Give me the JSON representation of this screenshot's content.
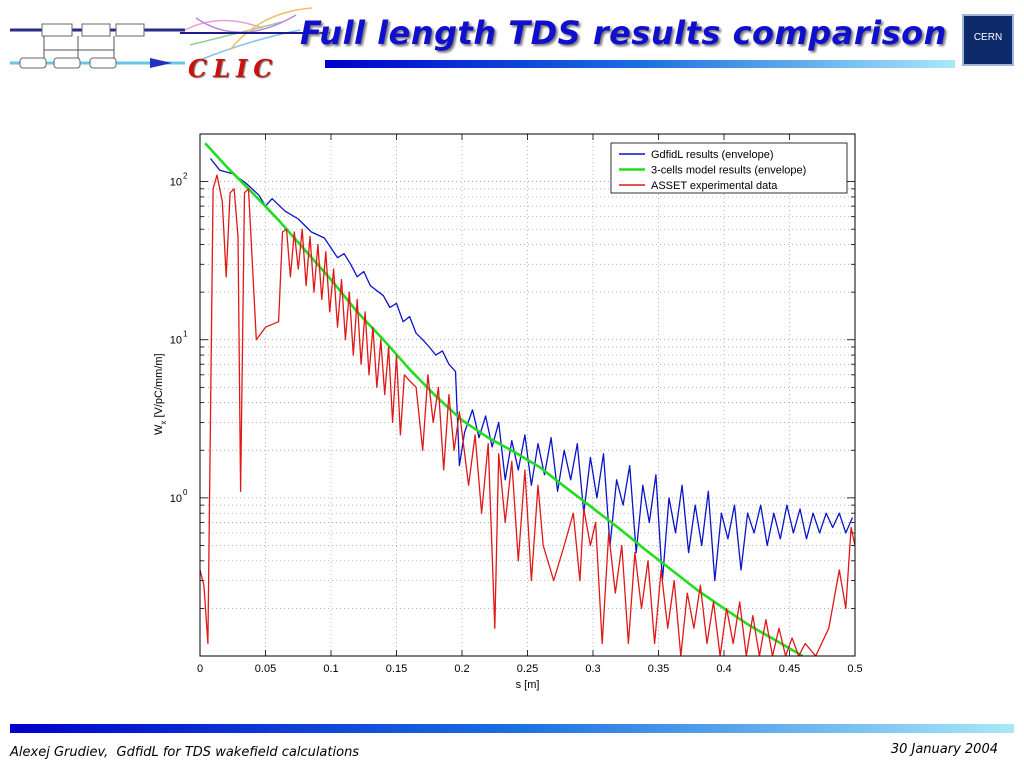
{
  "slide": {
    "title": "Full length TDS results comparison",
    "logo_text": "CLIC",
    "cern_logo_text": "CERN",
    "footer_author": "Alexej Grudiev,",
    "footer_topic": "GdfidL for TDS wakefield calculations",
    "footer_date": "30 January 2004"
  },
  "colors": {
    "title": "#1010cc",
    "logo": "#cc1010",
    "gdfidl": "#0a14c8",
    "model": "#20dd20",
    "asset": "#e01818"
  },
  "chart_data": {
    "type": "line",
    "xlabel": "s [m]",
    "ylabel": "W",
    "ylabel_sub": "x",
    "ylabel_unit": "[V/pC/mm/m]",
    "xlim": [
      0,
      0.5
    ],
    "ylim": [
      0.1,
      200
    ],
    "yscale": "log",
    "grid": true,
    "legend_position": "top-right",
    "x_ticks": [
      "0",
      "0.05",
      "0.1",
      "0.15",
      "0.2",
      "0.25",
      "0.3",
      "0.35",
      "0.4",
      "0.45",
      "0.5"
    ],
    "y_ticks": [
      {
        "base": "10",
        "exp": "0",
        "value": 1
      },
      {
        "base": "10",
        "exp": "1",
        "value": 10
      },
      {
        "base": "10",
        "exp": "2",
        "value": 100
      }
    ],
    "series": [
      {
        "name": "GdfidL results (envelope)",
        "color": "#0a14c8",
        "points": [
          [
            0.008,
            140
          ],
          [
            0.015,
            118
          ],
          [
            0.025,
            112
          ],
          [
            0.035,
            98
          ],
          [
            0.045,
            82
          ],
          [
            0.05,
            70
          ],
          [
            0.055,
            78
          ],
          [
            0.065,
            65
          ],
          [
            0.075,
            58
          ],
          [
            0.085,
            48
          ],
          [
            0.095,
            44
          ],
          [
            0.105,
            33
          ],
          [
            0.11,
            35
          ],
          [
            0.115,
            30
          ],
          [
            0.12,
            25
          ],
          [
            0.125,
            27
          ],
          [
            0.13,
            22
          ],
          [
            0.14,
            19
          ],
          [
            0.145,
            16
          ],
          [
            0.15,
            17
          ],
          [
            0.155,
            13
          ],
          [
            0.16,
            14
          ],
          [
            0.165,
            11
          ],
          [
            0.17,
            10
          ],
          [
            0.175,
            9
          ],
          [
            0.18,
            8
          ],
          [
            0.185,
            8.5
          ],
          [
            0.19,
            7
          ],
          [
            0.195,
            6.3
          ],
          [
            0.198,
            1.6
          ],
          [
            0.202,
            2.6
          ],
          [
            0.208,
            3.6
          ],
          [
            0.213,
            2.4
          ],
          [
            0.218,
            3.3
          ],
          [
            0.223,
            2.1
          ],
          [
            0.228,
            3.0
          ],
          [
            0.233,
            1.3
          ],
          [
            0.238,
            2.3
          ],
          [
            0.243,
            1.5
          ],
          [
            0.248,
            2.5
          ],
          [
            0.253,
            1.2
          ],
          [
            0.258,
            2.2
          ],
          [
            0.263,
            1.4
          ],
          [
            0.268,
            2.4
          ],
          [
            0.273,
            1.1
          ],
          [
            0.278,
            2.0
          ],
          [
            0.283,
            1.3
          ],
          [
            0.288,
            2.2
          ],
          [
            0.293,
            0.8
          ],
          [
            0.298,
            1.8
          ],
          [
            0.303,
            1.0
          ],
          [
            0.308,
            1.9
          ],
          [
            0.313,
            0.5
          ],
          [
            0.318,
            1.3
          ],
          [
            0.323,
            0.9
          ],
          [
            0.328,
            1.6
          ],
          [
            0.333,
            0.45
          ],
          [
            0.338,
            1.2
          ],
          [
            0.343,
            0.7
          ],
          [
            0.348,
            1.4
          ],
          [
            0.353,
            0.3
          ],
          [
            0.358,
            1.0
          ],
          [
            0.363,
            0.6
          ],
          [
            0.368,
            1.2
          ],
          [
            0.373,
            0.45
          ],
          [
            0.378,
            0.9
          ],
          [
            0.383,
            0.5
          ],
          [
            0.388,
            1.1
          ],
          [
            0.393,
            0.3
          ],
          [
            0.398,
            0.8
          ],
          [
            0.403,
            0.55
          ],
          [
            0.408,
            0.9
          ],
          [
            0.413,
            0.35
          ],
          [
            0.418,
            0.8
          ],
          [
            0.423,
            0.6
          ],
          [
            0.428,
            0.9
          ],
          [
            0.433,
            0.5
          ],
          [
            0.438,
            0.8
          ],
          [
            0.443,
            0.55
          ],
          [
            0.448,
            0.9
          ],
          [
            0.453,
            0.6
          ],
          [
            0.458,
            0.85
          ],
          [
            0.463,
            0.55
          ],
          [
            0.468,
            0.8
          ],
          [
            0.473,
            0.6
          ],
          [
            0.478,
            0.8
          ],
          [
            0.483,
            0.65
          ],
          [
            0.488,
            0.8
          ],
          [
            0.493,
            0.6
          ],
          [
            0.498,
            0.75
          ]
        ]
      },
      {
        "name": "3-cells model results (envelope)",
        "color": "#20dd20",
        "points": [
          [
            0.004,
            175
          ],
          [
            0.02,
            125
          ],
          [
            0.04,
            85
          ],
          [
            0.06,
            57
          ],
          [
            0.08,
            37
          ],
          [
            0.1,
            24
          ],
          [
            0.12,
            15
          ],
          [
            0.14,
            10
          ],
          [
            0.16,
            6.5
          ],
          [
            0.18,
            4.4
          ],
          [
            0.2,
            3.1
          ],
          [
            0.22,
            2.4
          ],
          [
            0.24,
            1.95
          ],
          [
            0.26,
            1.55
          ],
          [
            0.28,
            1.15
          ],
          [
            0.3,
            0.86
          ],
          [
            0.32,
            0.64
          ],
          [
            0.34,
            0.47
          ],
          [
            0.36,
            0.35
          ],
          [
            0.38,
            0.26
          ],
          [
            0.4,
            0.2
          ],
          [
            0.42,
            0.155
          ],
          [
            0.44,
            0.125
          ],
          [
            0.46,
            0.1
          ]
        ]
      },
      {
        "name": "ASSET experimental data",
        "color": "#e01818",
        "points": [
          [
            0,
            0.35
          ],
          [
            0.003,
            0.28
          ],
          [
            0.006,
            0.12
          ],
          [
            0.01,
            90
          ],
          [
            0.013,
            110
          ],
          [
            0.017,
            75
          ],
          [
            0.02,
            25
          ],
          [
            0.023,
            85
          ],
          [
            0.026,
            90
          ],
          [
            0.029,
            45
          ],
          [
            0.031,
            1.1
          ],
          [
            0.034,
            85
          ],
          [
            0.037,
            90
          ],
          [
            0.04,
            30
          ],
          [
            0.043,
            10
          ],
          [
            0.05,
            12
          ],
          [
            0.06,
            13
          ],
          [
            0.063,
            48
          ],
          [
            0.066,
            50
          ],
          [
            0.069,
            25
          ],
          [
            0.072,
            48
          ],
          [
            0.075,
            28
          ],
          [
            0.078,
            50
          ],
          [
            0.081,
            22
          ],
          [
            0.084,
            45
          ],
          [
            0.087,
            20
          ],
          [
            0.09,
            40
          ],
          [
            0.093,
            18
          ],
          [
            0.096,
            36
          ],
          [
            0.099,
            15
          ],
          [
            0.102,
            28
          ],
          [
            0.105,
            12
          ],
          [
            0.108,
            24
          ],
          [
            0.111,
            10
          ],
          [
            0.114,
            20
          ],
          [
            0.117,
            8
          ],
          [
            0.12,
            18
          ],
          [
            0.123,
            7
          ],
          [
            0.126,
            15
          ],
          [
            0.129,
            6
          ],
          [
            0.132,
            12
          ],
          [
            0.135,
            5
          ],
          [
            0.138,
            10
          ],
          [
            0.141,
            4.5
          ],
          [
            0.144,
            9
          ],
          [
            0.147,
            3
          ],
          [
            0.15,
            8
          ],
          [
            0.153,
            2.5
          ],
          [
            0.156,
            6
          ],
          [
            0.16,
            5.5
          ],
          [
            0.165,
            5
          ],
          [
            0.17,
            2.0
          ],
          [
            0.174,
            6
          ],
          [
            0.178,
            3
          ],
          [
            0.182,
            5
          ],
          [
            0.186,
            1.5
          ],
          [
            0.19,
            4.5
          ],
          [
            0.194,
            2.0
          ],
          [
            0.198,
            3.5
          ],
          [
            0.205,
            1.2
          ],
          [
            0.21,
            2.5
          ],
          [
            0.215,
            0.8
          ],
          [
            0.22,
            2.2
          ],
          [
            0.225,
            0.15
          ],
          [
            0.228,
            1.9
          ],
          [
            0.233,
            0.7
          ],
          [
            0.238,
            1.7
          ],
          [
            0.243,
            0.4
          ],
          [
            0.248,
            1.5
          ],
          [
            0.253,
            0.3
          ],
          [
            0.258,
            1.2
          ],
          [
            0.262,
            0.5
          ],
          [
            0.27,
            0.3
          ],
          [
            0.278,
            0.5
          ],
          [
            0.285,
            0.8
          ],
          [
            0.29,
            0.3
          ],
          [
            0.293,
            0.85
          ],
          [
            0.298,
            0.5
          ],
          [
            0.302,
            0.7
          ],
          [
            0.307,
            0.12
          ],
          [
            0.312,
            0.6
          ],
          [
            0.317,
            0.25
          ],
          [
            0.322,
            0.5
          ],
          [
            0.327,
            0.12
          ],
          [
            0.332,
            0.45
          ],
          [
            0.337,
            0.2
          ],
          [
            0.342,
            0.4
          ],
          [
            0.347,
            0.12
          ],
          [
            0.352,
            0.35
          ],
          [
            0.357,
            0.15
          ],
          [
            0.362,
            0.3
          ],
          [
            0.367,
            0.1
          ],
          [
            0.372,
            0.25
          ],
          [
            0.377,
            0.15
          ],
          [
            0.382,
            0.28
          ],
          [
            0.387,
            0.12
          ],
          [
            0.392,
            0.22
          ],
          [
            0.397,
            0.1
          ],
          [
            0.402,
            0.2
          ],
          [
            0.407,
            0.12
          ],
          [
            0.412,
            0.22
          ],
          [
            0.417,
            0.1
          ],
          [
            0.422,
            0.18
          ],
          [
            0.427,
            0.1
          ],
          [
            0.432,
            0.17
          ],
          [
            0.437,
            0.1
          ],
          [
            0.442,
            0.15
          ],
          [
            0.447,
            0.1
          ],
          [
            0.452,
            0.13
          ],
          [
            0.457,
            0.1
          ],
          [
            0.462,
            0.12
          ],
          [
            0.47,
            0.1
          ],
          [
            0.48,
            0.15
          ],
          [
            0.488,
            0.35
          ],
          [
            0.493,
            0.2
          ],
          [
            0.497,
            0.65
          ],
          [
            0.5,
            0.5
          ]
        ]
      }
    ]
  }
}
